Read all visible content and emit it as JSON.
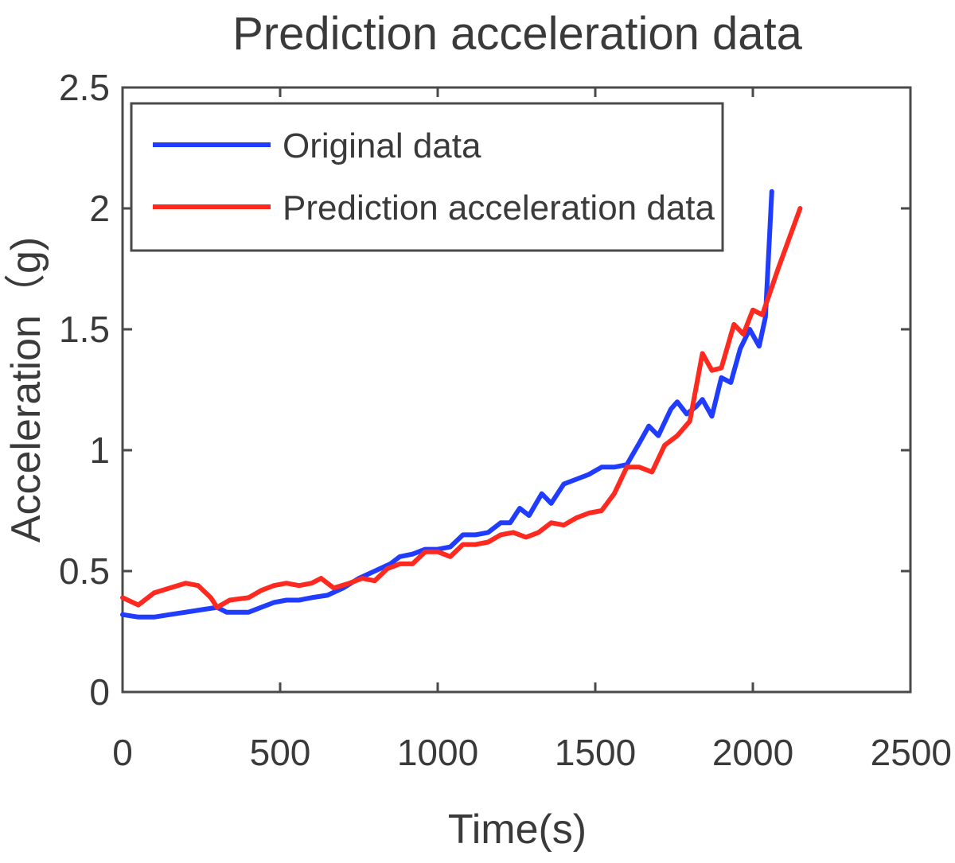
{
  "chart_data": {
    "type": "line",
    "title": "Prediction acceleration data",
    "xlabel": "Time(s)",
    "ylabel": "Acceleration（g)",
    "xlim": [
      0,
      2500
    ],
    "ylim": [
      0,
      2.5
    ],
    "xticks": [
      "0",
      "500",
      "1000",
      "1500",
      "2000",
      "2500"
    ],
    "yticks": [
      "0",
      "0.5",
      "1",
      "1.5",
      "2",
      "2.5"
    ],
    "grid": false,
    "legend_position": "top-left",
    "series": [
      {
        "name": "Original data",
        "color": "#1f3cff",
        "points": [
          [
            0,
            0.32
          ],
          [
            50,
            0.31
          ],
          [
            100,
            0.31
          ],
          [
            150,
            0.32
          ],
          [
            200,
            0.33
          ],
          [
            250,
            0.34
          ],
          [
            300,
            0.35
          ],
          [
            330,
            0.33
          ],
          [
            360,
            0.33
          ],
          [
            400,
            0.33
          ],
          [
            440,
            0.35
          ],
          [
            480,
            0.37
          ],
          [
            520,
            0.38
          ],
          [
            560,
            0.38
          ],
          [
            600,
            0.39
          ],
          [
            650,
            0.4
          ],
          [
            700,
            0.43
          ],
          [
            750,
            0.47
          ],
          [
            800,
            0.5
          ],
          [
            850,
            0.53
          ],
          [
            880,
            0.56
          ],
          [
            920,
            0.57
          ],
          [
            960,
            0.59
          ],
          [
            1000,
            0.59
          ],
          [
            1040,
            0.6
          ],
          [
            1080,
            0.65
          ],
          [
            1120,
            0.65
          ],
          [
            1160,
            0.66
          ],
          [
            1200,
            0.7
          ],
          [
            1230,
            0.7
          ],
          [
            1260,
            0.76
          ],
          [
            1290,
            0.73
          ],
          [
            1330,
            0.82
          ],
          [
            1360,
            0.78
          ],
          [
            1400,
            0.86
          ],
          [
            1440,
            0.88
          ],
          [
            1480,
            0.9
          ],
          [
            1520,
            0.93
          ],
          [
            1560,
            0.93
          ],
          [
            1600,
            0.94
          ],
          [
            1640,
            1.03
          ],
          [
            1670,
            1.1
          ],
          [
            1700,
            1.06
          ],
          [
            1740,
            1.17
          ],
          [
            1760,
            1.2
          ],
          [
            1790,
            1.15
          ],
          [
            1820,
            1.18
          ],
          [
            1840,
            1.21
          ],
          [
            1870,
            1.14
          ],
          [
            1900,
            1.3
          ],
          [
            1930,
            1.28
          ],
          [
            1960,
            1.42
          ],
          [
            1990,
            1.5
          ],
          [
            2020,
            1.43
          ],
          [
            2040,
            1.55
          ],
          [
            2060,
            2.07
          ]
        ]
      },
      {
        "name": "Prediction acceleration data",
        "color": "#ff2a1f",
        "points": [
          [
            0,
            0.39
          ],
          [
            50,
            0.36
          ],
          [
            100,
            0.41
          ],
          [
            150,
            0.43
          ],
          [
            200,
            0.45
          ],
          [
            240,
            0.44
          ],
          [
            280,
            0.39
          ],
          [
            300,
            0.35
          ],
          [
            340,
            0.38
          ],
          [
            400,
            0.39
          ],
          [
            440,
            0.42
          ],
          [
            480,
            0.44
          ],
          [
            520,
            0.45
          ],
          [
            560,
            0.44
          ],
          [
            600,
            0.45
          ],
          [
            630,
            0.47
          ],
          [
            670,
            0.43
          ],
          [
            720,
            0.45
          ],
          [
            760,
            0.47
          ],
          [
            800,
            0.46
          ],
          [
            840,
            0.51
          ],
          [
            880,
            0.53
          ],
          [
            920,
            0.53
          ],
          [
            960,
            0.58
          ],
          [
            1000,
            0.58
          ],
          [
            1040,
            0.56
          ],
          [
            1080,
            0.61
          ],
          [
            1120,
            0.61
          ],
          [
            1160,
            0.62
          ],
          [
            1200,
            0.65
          ],
          [
            1240,
            0.66
          ],
          [
            1280,
            0.64
          ],
          [
            1320,
            0.66
          ],
          [
            1360,
            0.7
          ],
          [
            1400,
            0.69
          ],
          [
            1440,
            0.72
          ],
          [
            1480,
            0.74
          ],
          [
            1520,
            0.75
          ],
          [
            1560,
            0.82
          ],
          [
            1600,
            0.93
          ],
          [
            1640,
            0.93
          ],
          [
            1680,
            0.91
          ],
          [
            1720,
            1.02
          ],
          [
            1760,
            1.06
          ],
          [
            1800,
            1.12
          ],
          [
            1840,
            1.4
          ],
          [
            1870,
            1.33
          ],
          [
            1900,
            1.34
          ],
          [
            1940,
            1.52
          ],
          [
            1970,
            1.48
          ],
          [
            2000,
            1.58
          ],
          [
            2030,
            1.56
          ],
          [
            2080,
            1.75
          ],
          [
            2150,
            2.0
          ]
        ]
      }
    ]
  }
}
